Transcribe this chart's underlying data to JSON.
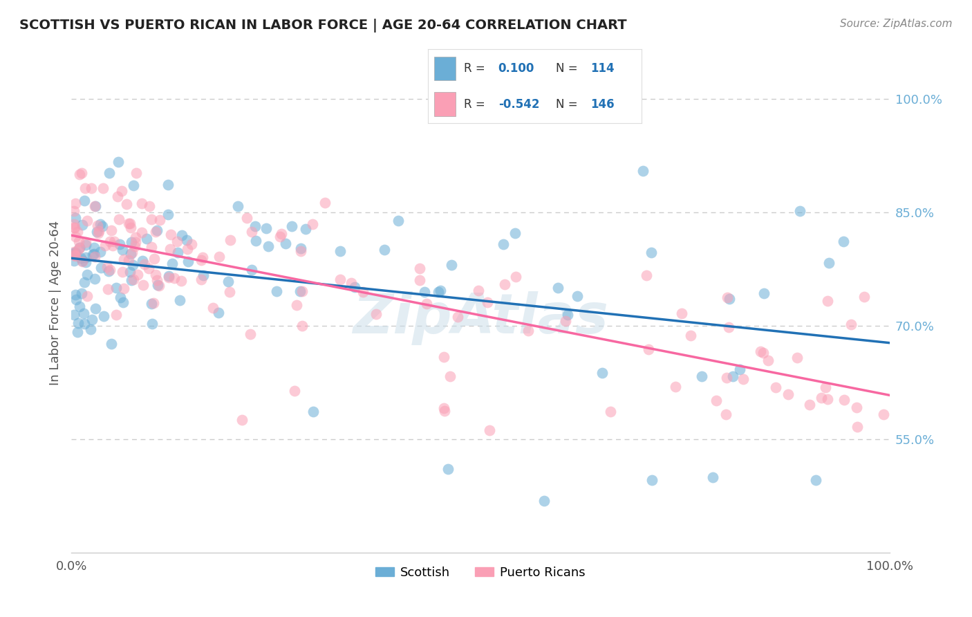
{
  "title": "SCOTTISH VS PUERTO RICAN IN LABOR FORCE | AGE 20-64 CORRELATION CHART",
  "source": "Source: ZipAtlas.com",
  "ylabel": "In Labor Force | Age 20-64",
  "right_yticks": [
    0.55,
    0.7,
    0.85,
    1.0
  ],
  "right_ytick_labels": [
    "55.0%",
    "70.0%",
    "85.0%",
    "100.0%"
  ],
  "scottish_R": 0.1,
  "scottish_N": 114,
  "puerto_rican_R": -0.542,
  "puerto_rican_N": 146,
  "blue_color": "#6baed6",
  "pink_color": "#fa9fb5",
  "blue_line_color": "#2171b5",
  "pink_line_color": "#f768a1",
  "legend_text_color": "#2171b5",
  "watermark": "ZipAtlas",
  "background_color": "#ffffff",
  "xlim": [
    0,
    100
  ],
  "ylim": [
    0.4,
    1.06
  ]
}
